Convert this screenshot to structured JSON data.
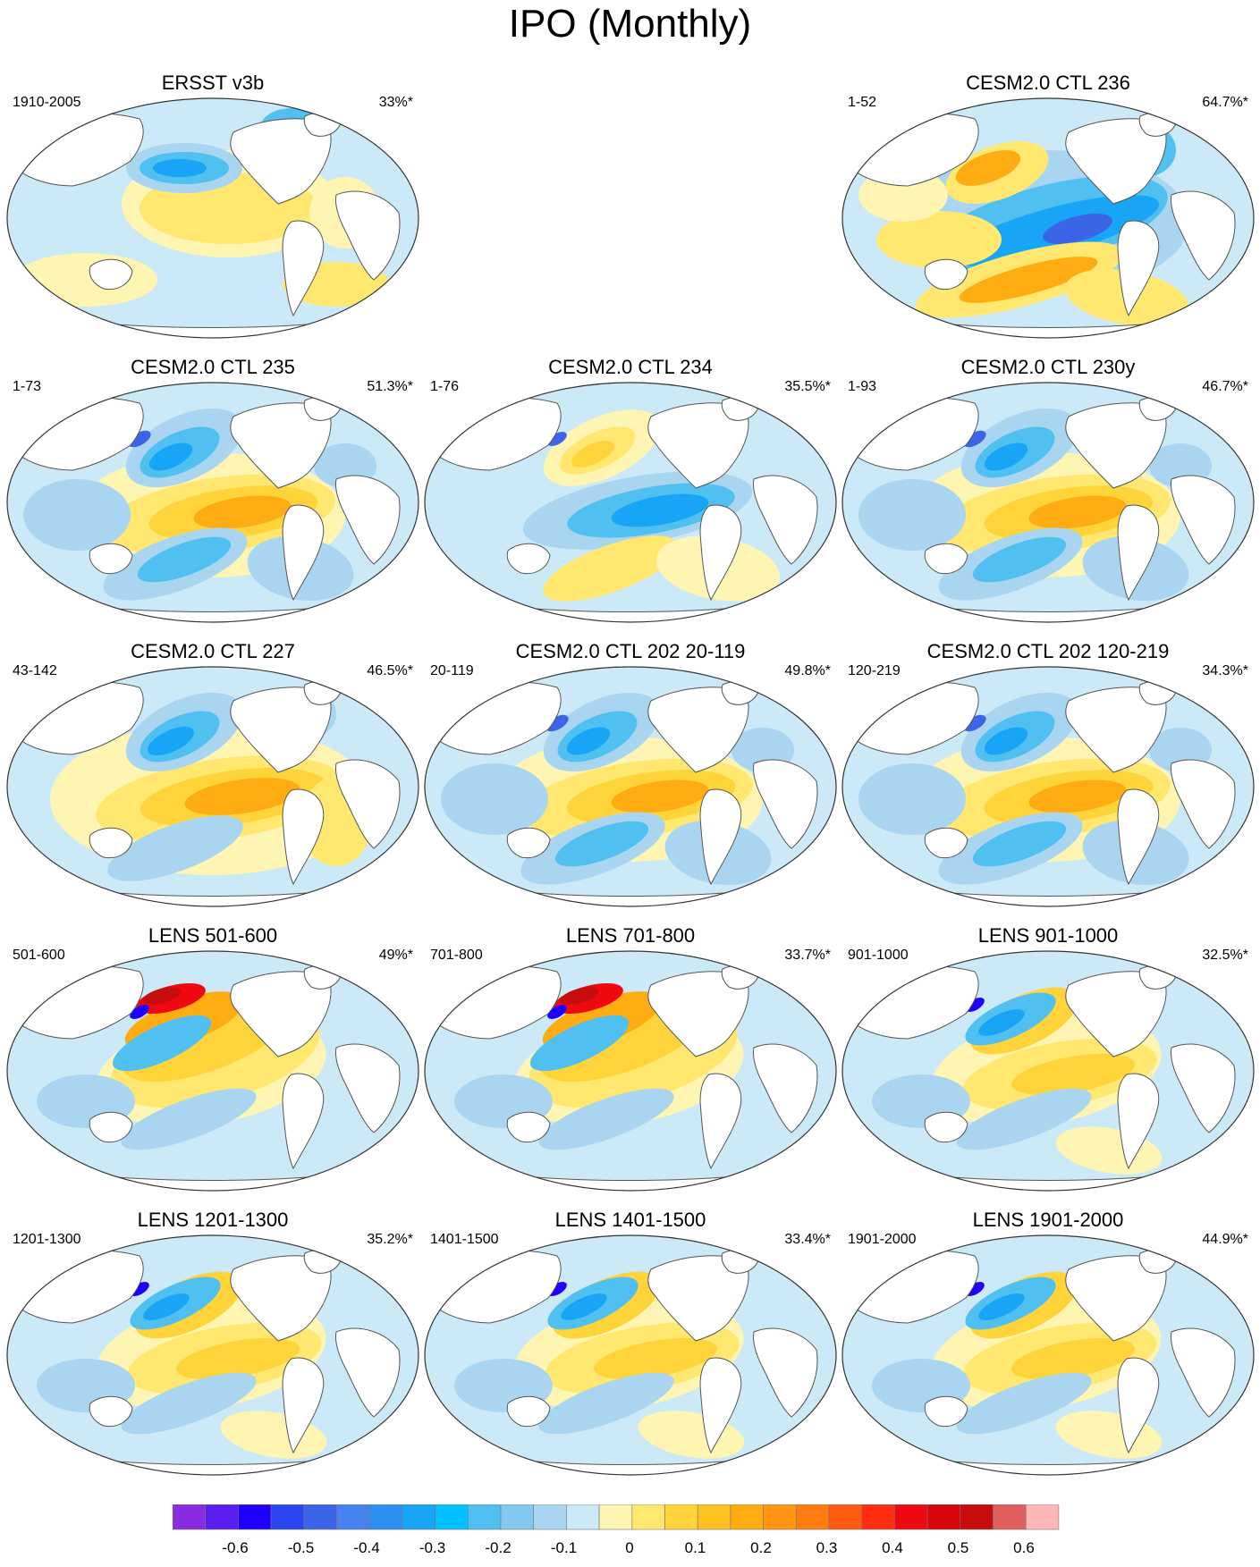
{
  "title": "IPO (Monthly)",
  "panels": [
    {
      "title": "ERSST v3b",
      "years": "1910-2005",
      "pct": "33%*",
      "pattern": "obs"
    },
    {
      "title": "CESM2.0 CTL 236",
      "years": "1-52",
      "pct": "64.7%*",
      "pattern": "strong"
    },
    {
      "title": "CESM2.0 CTL 235",
      "years": "1-73",
      "pct": "51.3%*",
      "pattern": "standard"
    },
    {
      "title": "CESM2.0 CTL 234",
      "years": "1-76",
      "pct": "35.5%*",
      "pattern": "inverted"
    },
    {
      "title": "CESM2.0 CTL 230y",
      "years": "1-93",
      "pct": "46.7%*",
      "pattern": "standard"
    },
    {
      "title": "CESM2.0 CTL 227",
      "years": "43-142",
      "pct": "46.5%*",
      "pattern": "labrador"
    },
    {
      "title": "CESM2.0 CTL 202 20-119",
      "years": "20-119",
      "pct": "49.8%*",
      "pattern": "standard"
    },
    {
      "title": "CESM2.0 CTL 202 120-219",
      "years": "120-219",
      "pct": "34.3%*",
      "pattern": "standard"
    },
    {
      "title": "LENS 501-600",
      "years": "501-600",
      "pct": "49%*",
      "pattern": "lens-hot"
    },
    {
      "title": "LENS 701-800",
      "years": "701-800",
      "pct": "33.7%*",
      "pattern": "lens-hot"
    },
    {
      "title": "LENS 901-1000",
      "years": "901-1000",
      "pct": "32.5%*",
      "pattern": "lens"
    },
    {
      "title": "LENS 1201-1300",
      "years": "1201-1300",
      "pct": "35.2%*",
      "pattern": "lens"
    },
    {
      "title": "LENS 1401-1500",
      "years": "1401-1500",
      "pct": "33.4%*",
      "pattern": "lens"
    },
    {
      "title": "LENS 1901-2000",
      "years": "1901-2000",
      "pct": "44.9%*",
      "pattern": "lens"
    }
  ],
  "colorbar": {
    "colors": [
      "#8b2be2",
      "#5a1ef0",
      "#1f00ff",
      "#2845f0",
      "#3c64e6",
      "#4682ef",
      "#2d8ff5",
      "#18a5f5",
      "#00c0ff",
      "#4fc0f0",
      "#82c8ef",
      "#a9d5f0",
      "#cbe9f7",
      "#fff5b3",
      "#ffe770",
      "#ffd43b",
      "#ffc021",
      "#ffac12",
      "#ff9510",
      "#ff7c10",
      "#ff5a10",
      "#ff2e10",
      "#ee0a10",
      "#d8040c",
      "#c60c0c",
      "#e06060",
      "#ffb6b6"
    ],
    "tick_labels": [
      "-0.6",
      "-0.5",
      "-0.4",
      "-0.3",
      "-0.2",
      "-0.1",
      "0",
      "0.1",
      "0.2",
      "0.3",
      "0.4",
      "0.5",
      "0.6"
    ],
    "tick_values": [
      -0.6,
      -0.5,
      -0.4,
      -0.3,
      -0.2,
      -0.1,
      0,
      0.1,
      0.2,
      0.3,
      0.4,
      0.5,
      0.6
    ]
  }
}
